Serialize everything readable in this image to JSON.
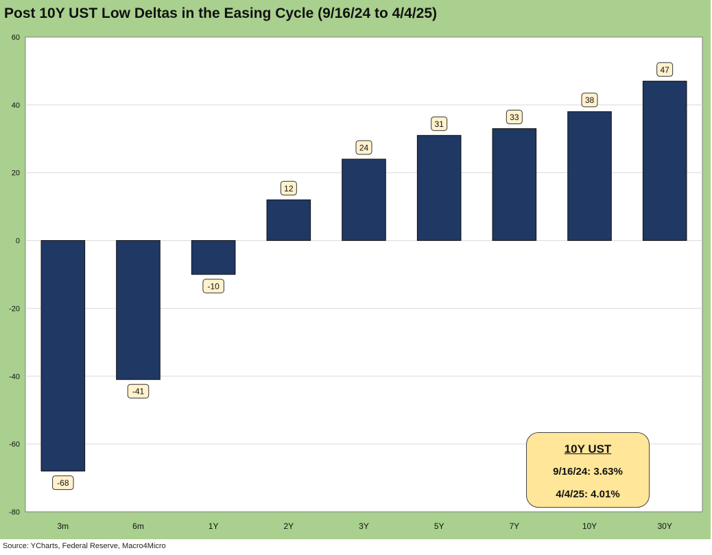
{
  "title": "Post 10Y UST Low Deltas in the Easing Cycle (9/16/24 to 4/4/25)",
  "source": "Source: YCharts, Federal Reserve, Macro4Micro",
  "annotation": {
    "title": "10Y UST",
    "line1": "9/16/24: 3.63%",
    "line2": "4/4/25: 4.01%"
  },
  "colors": {
    "frame": "#a9d08e",
    "plot_bg": "#ffffff",
    "bar": "#1f3864",
    "label_bg": "#fff2cc",
    "annotation_bg": "#ffe699"
  },
  "chart_data": {
    "type": "bar",
    "categories": [
      "3m",
      "6m",
      "1Y",
      "2Y",
      "3Y",
      "5Y",
      "7Y",
      "10Y",
      "30Y"
    ],
    "values": [
      -68,
      -41,
      -10,
      12,
      24,
      31,
      33,
      38,
      47
    ],
    "ylim": [
      -80,
      60
    ],
    "yticks": [
      "-80",
      "-60",
      "-40",
      "-20",
      "0",
      "20",
      "40",
      "60"
    ],
    "grid": true,
    "legend": "none",
    "title": "Post 10Y UST Low Deltas in the Easing Cycle (9/16/24 to 4/4/25)",
    "xlabel": "",
    "ylabel": ""
  }
}
